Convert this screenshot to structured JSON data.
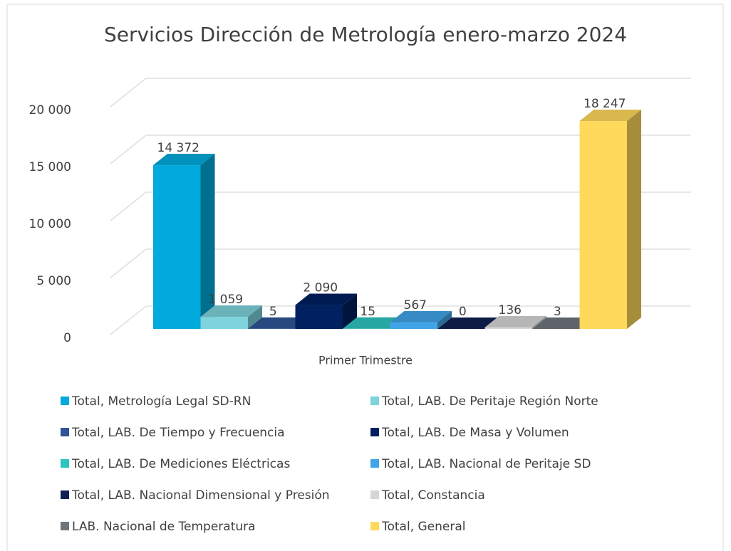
{
  "chart_data": {
    "type": "bar3d",
    "title": "Servicios Dirección de Metrología enero-marzo 2024",
    "categories": [
      "Primer Trimestre"
    ],
    "series": [
      {
        "name": "Total, Metrología Legal SD-RN",
        "color": "#00aadd",
        "values": [
          14372
        ],
        "value_labels": [
          "14 372"
        ]
      },
      {
        "name": "Total, LAB. De Peritaje Región Norte",
        "color": "#7ed3dc",
        "values": [
          1059
        ],
        "value_labels": [
          "1 059"
        ]
      },
      {
        "name": "Total, LAB. De Tiempo y Frecuencia",
        "color": "#2f5597",
        "values": [
          5
        ],
        "value_labels": [
          "5"
        ]
      },
      {
        "name": "Total, LAB. De Masa y Volumen",
        "color": "#00205f",
        "values": [
          2090
        ],
        "value_labels": [
          "2 090"
        ]
      },
      {
        "name": "Total, LAB. De Mediciones Eléctricas",
        "color": "#2ec4c0",
        "values": [
          15
        ],
        "value_labels": [
          "15"
        ]
      },
      {
        "name": "Total, LAB. Nacional de Peritaje SD",
        "color": "#40a4e6",
        "values": [
          567
        ],
        "value_labels": [
          "567"
        ]
      },
      {
        "name": "Total, LAB. Nacional Dimensional y Presión",
        "color": "#0e2150",
        "values": [
          0
        ],
        "value_labels": [
          "0"
        ]
      },
      {
        "name": "Total, Constancia",
        "color": "#d6d6d6",
        "values": [
          136
        ],
        "value_labels": [
          "136"
        ]
      },
      {
        "name": "LAB. Nacional de Temperatura",
        "color": "#6e767b",
        "values": [
          3
        ],
        "value_labels": [
          "3"
        ]
      },
      {
        "name": "Total, General",
        "color": "#ffd95c",
        "values": [
          18247
        ],
        "value_labels": [
          "18 247"
        ]
      }
    ],
    "ylim": [
      0,
      20000
    ],
    "yticks": [
      0,
      {
        "value": 5000,
        "label": "5 000"
      },
      {
        "value": 10000,
        "label": "10 000"
      },
      {
        "value": 15000,
        "label": "15 000"
      },
      {
        "value": 20000,
        "label": "20 000"
      }
    ],
    "grid": true
  }
}
